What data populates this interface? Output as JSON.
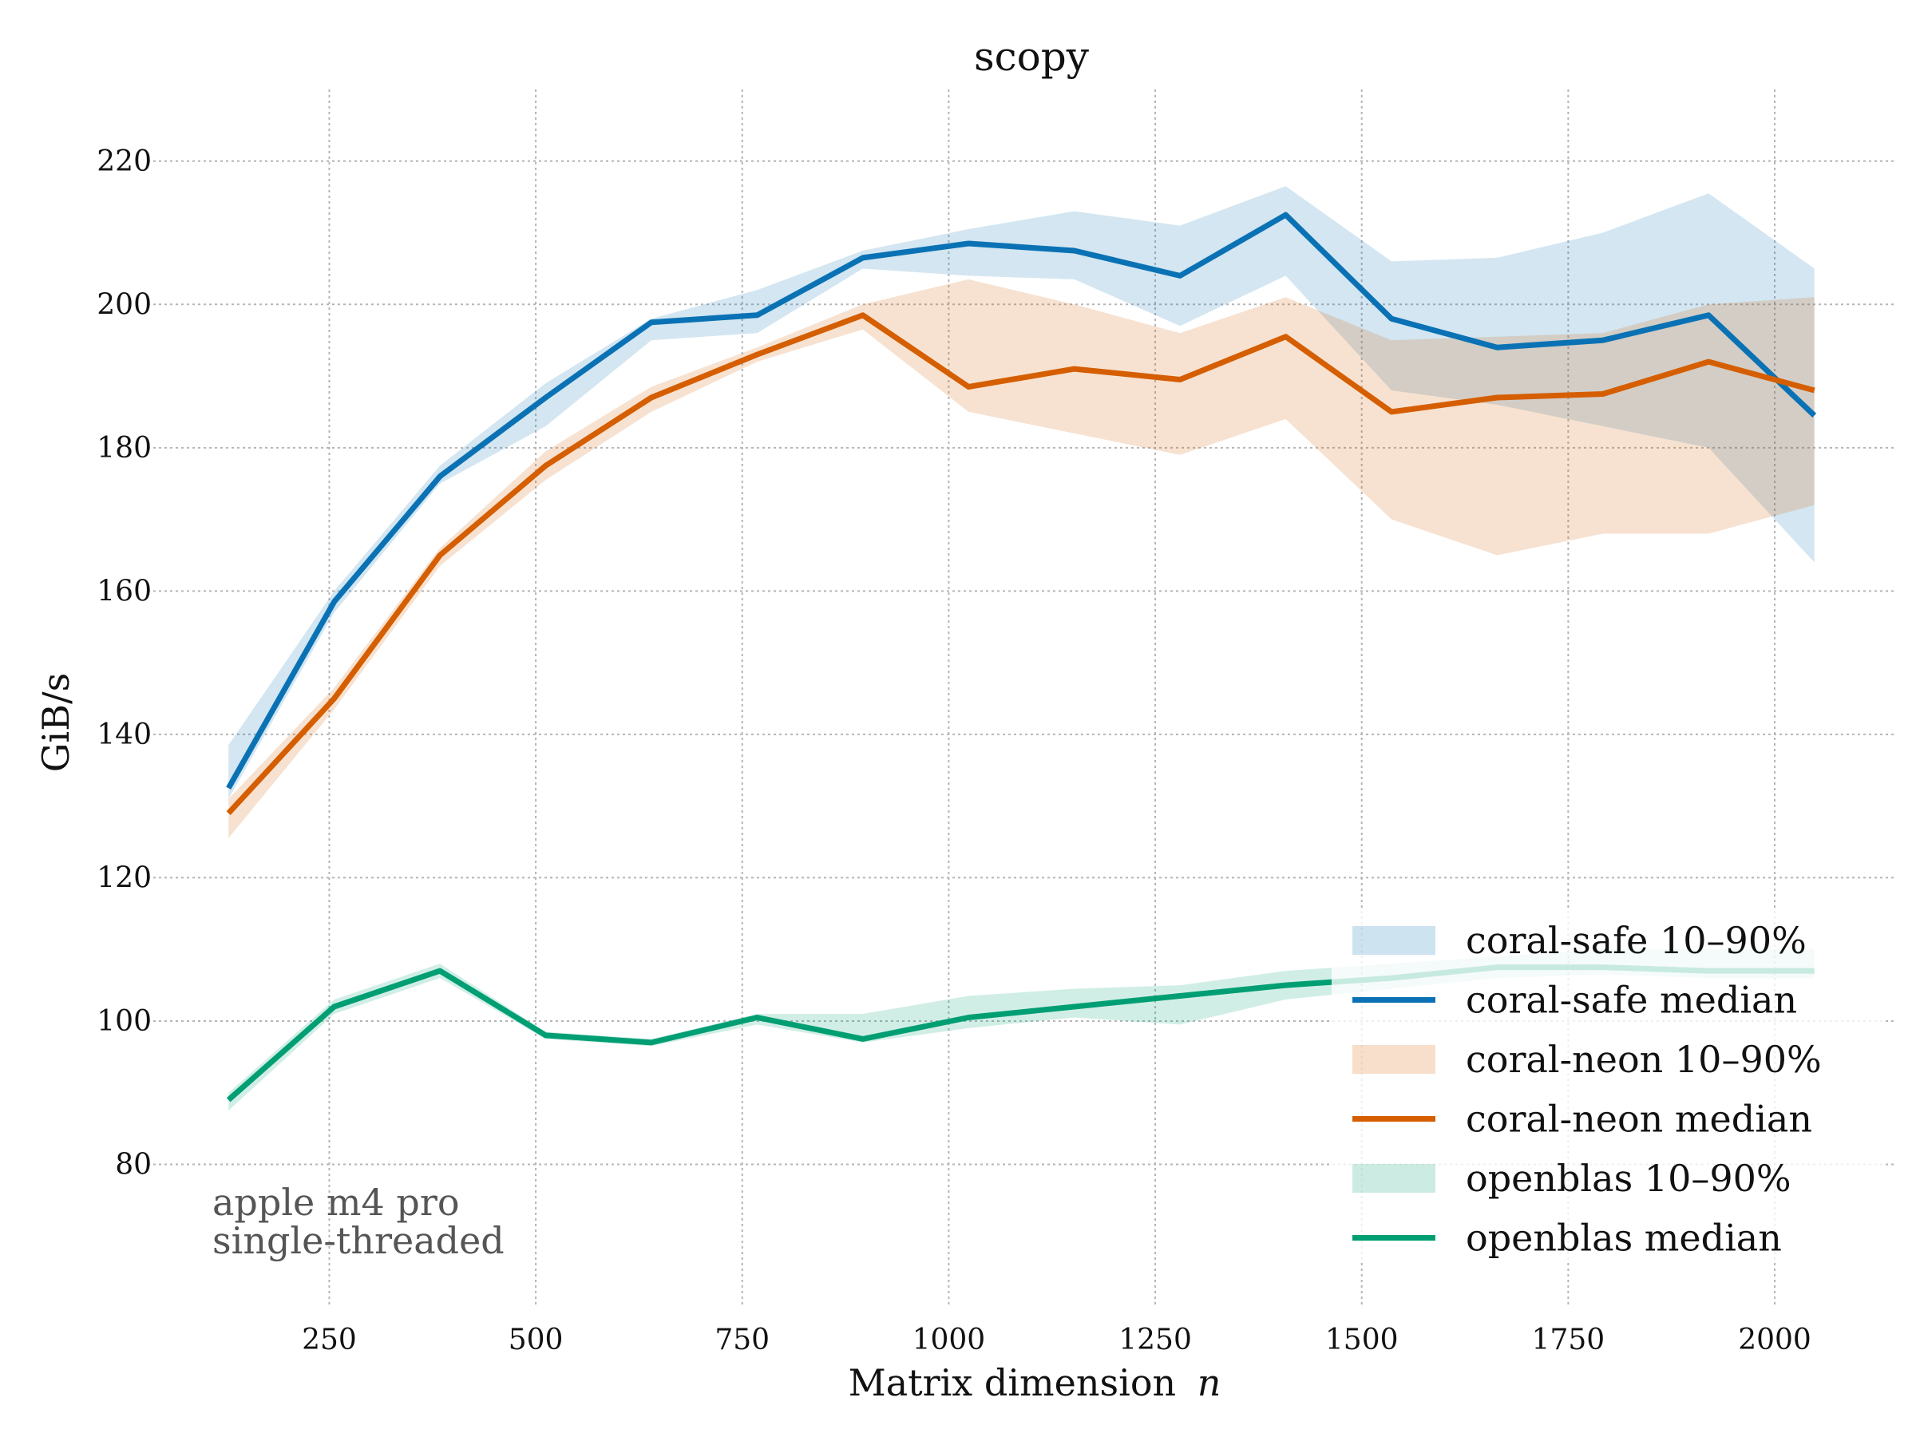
{
  "chart_data": {
    "type": "line",
    "title": "scopy",
    "xlabel": "Matrix dimension",
    "xlabel_var": "n",
    "ylabel": "GiB/s",
    "xlim": [
      64,
      2144
    ],
    "ylim": [
      60,
      230
    ],
    "xticks": [
      250,
      500,
      750,
      1000,
      1250,
      1500,
      1750,
      2000
    ],
    "yticks": [
      80,
      100,
      120,
      140,
      160,
      180,
      200,
      220
    ],
    "grid": true,
    "legend_position": "bottom-right",
    "annotation": [
      "apple m4 pro",
      "single-threaded"
    ],
    "x": [
      128,
      256,
      384,
      512,
      640,
      768,
      896,
      1024,
      1152,
      1280,
      1408,
      1536,
      1664,
      1792,
      1920,
      2048
    ],
    "series": [
      {
        "name": "coral-safe",
        "color": "#0a72b4",
        "band_label": "coral-safe 10–90%",
        "median_label": "coral-safe median",
        "median": [
          132.5,
          158.5,
          176.0,
          187.0,
          197.5,
          198.5,
          206.5,
          208.5,
          207.5,
          204.0,
          212.5,
          198.0,
          194.0,
          195.0,
          198.5,
          184.5
        ],
        "p10": [
          131.0,
          157.0,
          175.0,
          183.0,
          195.0,
          196.0,
          205.0,
          204.0,
          203.5,
          197.0,
          204.0,
          188.0,
          186.0,
          183.0,
          180.0,
          164.0
        ],
        "p90": [
          138.5,
          160.0,
          177.5,
          189.0,
          198.0,
          202.0,
          207.5,
          210.5,
          213.0,
          211.0,
          216.5,
          206.0,
          206.5,
          210.0,
          215.5,
          205.0
        ]
      },
      {
        "name": "coral-neon",
        "color": "#d55e00",
        "band_label": "coral-neon 10–90%",
        "median_label": "coral-neon median",
        "median": [
          129.0,
          145.0,
          165.0,
          177.5,
          187.0,
          193.0,
          198.5,
          188.5,
          191.0,
          189.5,
          195.5,
          185.0,
          187.0,
          187.5,
          192.0,
          188.0
        ],
        "p10": [
          125.5,
          143.5,
          163.5,
          175.5,
          185.0,
          192.0,
          196.5,
          185.0,
          182.0,
          179.0,
          184.0,
          170.0,
          165.0,
          168.0,
          168.0,
          172.0
        ],
        "p90": [
          131.0,
          146.5,
          166.0,
          179.5,
          188.5,
          194.0,
          200.0,
          203.5,
          200.0,
          196.0,
          201.0,
          195.0,
          195.5,
          196.0,
          200.0,
          201.0
        ]
      },
      {
        "name": "openblas",
        "color": "#009e73",
        "band_label": "openblas 10–90%",
        "median_label": "openblas median",
        "median": [
          89.0,
          102.0,
          107.0,
          98.0,
          97.0,
          100.5,
          97.5,
          100.5,
          102.0,
          103.5,
          105.0,
          106.0,
          107.5,
          107.5,
          107.0,
          107.0
        ],
        "p10": [
          87.5,
          101.0,
          106.0,
          97.5,
          96.5,
          99.5,
          97.0,
          99.0,
          100.5,
          99.5,
          103.0,
          104.5,
          106.0,
          106.5,
          106.0,
          106.0
        ],
        "p90": [
          90.0,
          103.0,
          108.0,
          98.5,
          97.5,
          101.0,
          101.0,
          103.5,
          104.5,
          105.0,
          107.0,
          108.0,
          109.0,
          110.0,
          110.0,
          110.0
        ]
      }
    ]
  }
}
